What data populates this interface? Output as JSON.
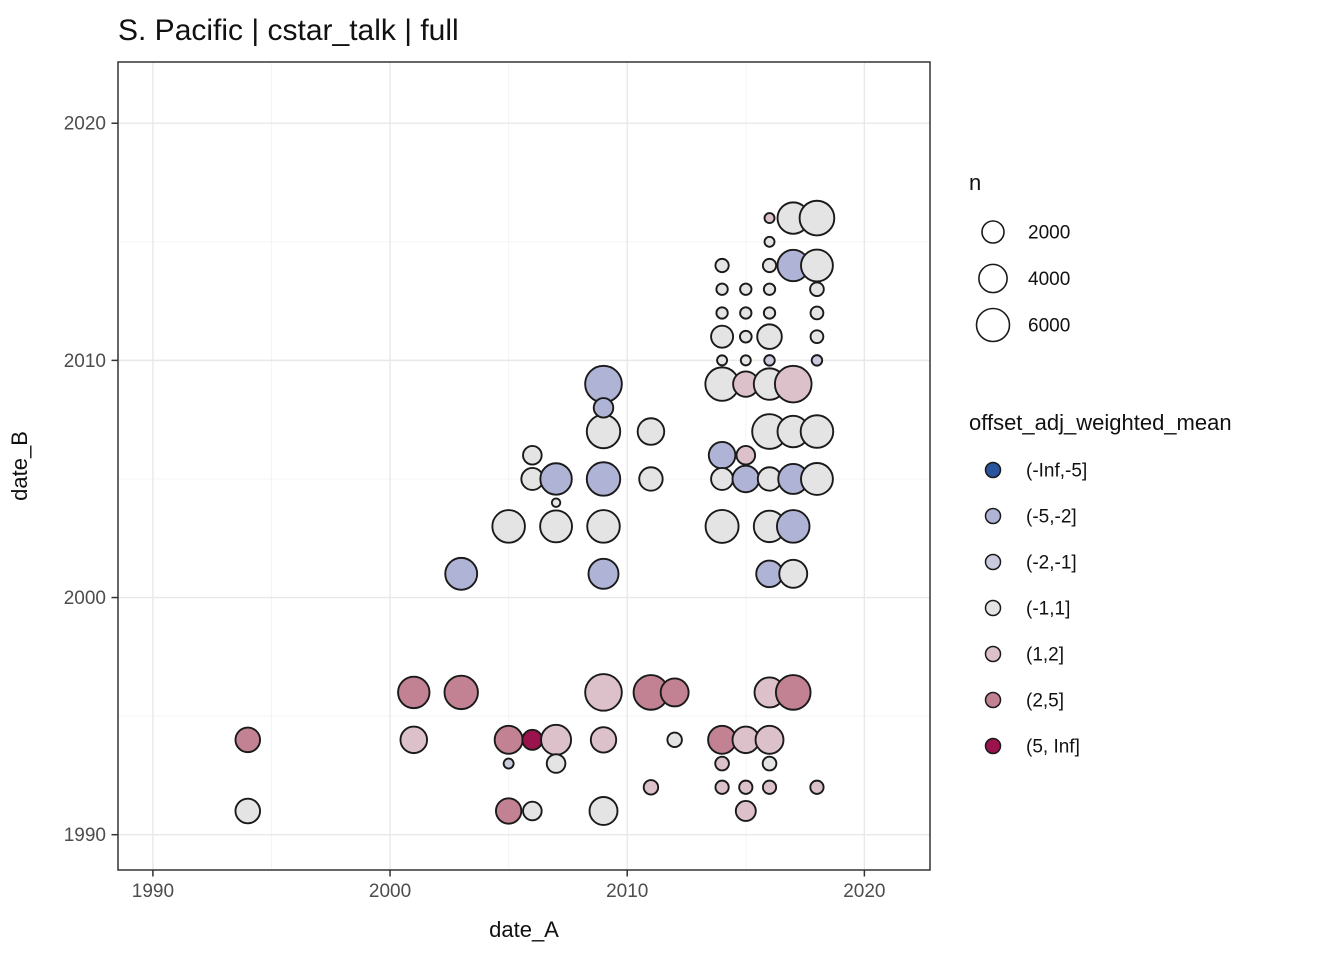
{
  "title": "S. Pacific | cstar_talk | full",
  "chart_data": {
    "type": "scatter",
    "subtype": "bubble",
    "title": "S. Pacific | cstar_talk | full",
    "xlabel": "date_A",
    "ylabel": "date_B",
    "x_ticks": [
      1990,
      2000,
      2010,
      2020
    ],
    "y_ticks": [
      1990,
      2000,
      2010,
      2020
    ],
    "x_minor_gridlines": [
      1995,
      2005,
      2015
    ],
    "y_minor_gridlines": [
      1995,
      2005,
      2015
    ],
    "xlim": [
      1988.5,
      2022.8
    ],
    "ylim": [
      1988.5,
      2022.6
    ],
    "grid": true,
    "legend_position": "right",
    "size_legend": {
      "title": "n",
      "values": [
        2000,
        4000,
        6000
      ]
    },
    "color_legend": {
      "title": "offset_adj_weighted_mean",
      "bins": [
        {
          "label": "(-Inf,-5]",
          "color": "#2A549E"
        },
        {
          "label": "(-5,-2]",
          "color": "#AFB4D6"
        },
        {
          "label": "(-2,-1]",
          "color": "#C9CADE"
        },
        {
          "label": "(-1,1]",
          "color": "#E5E4E5"
        },
        {
          "label": "(1,2]",
          "color": "#DDC1CA"
        },
        {
          "label": "(2,5]",
          "color": "#C28293"
        },
        {
          "label": "(5, Inf]",
          "color": "#9A134D"
        }
      ]
    },
    "points": [
      {
        "x": 2016,
        "y": 2016,
        "n": 80,
        "bin": "(1,2]"
      },
      {
        "x": 2017,
        "y": 2016,
        "n": 5300,
        "bin": "(-1,1]"
      },
      {
        "x": 2018,
        "y": 2016,
        "n": 6800,
        "bin": "(-1,1]"
      },
      {
        "x": 2016,
        "y": 2015,
        "n": 80,
        "bin": "(-1,1]"
      },
      {
        "x": 2014,
        "y": 2014,
        "n": 350,
        "bin": "(-1,1]"
      },
      {
        "x": 2016,
        "y": 2014,
        "n": 350,
        "bin": "(-1,1]"
      },
      {
        "x": 2017,
        "y": 2014,
        "n": 5300,
        "bin": "(-5,-2]"
      },
      {
        "x": 2018,
        "y": 2014,
        "n": 5500,
        "bin": "(-1,1]"
      },
      {
        "x": 2014,
        "y": 2013,
        "n": 170,
        "bin": "(-1,1]"
      },
      {
        "x": 2015,
        "y": 2013,
        "n": 170,
        "bin": "(-1,1]"
      },
      {
        "x": 2016,
        "y": 2013,
        "n": 170,
        "bin": "(-1,1]"
      },
      {
        "x": 2018,
        "y": 2013,
        "n": 400,
        "bin": "(-1,1]"
      },
      {
        "x": 2014,
        "y": 2012,
        "n": 170,
        "bin": "(-1,1]"
      },
      {
        "x": 2015,
        "y": 2012,
        "n": 170,
        "bin": "(-1,1]"
      },
      {
        "x": 2016,
        "y": 2012,
        "n": 170,
        "bin": "(-1,1]"
      },
      {
        "x": 2018,
        "y": 2012,
        "n": 300,
        "bin": "(-1,1]"
      },
      {
        "x": 2014,
        "y": 2011,
        "n": 2000,
        "bin": "(-1,1]"
      },
      {
        "x": 2015,
        "y": 2011,
        "n": 200,
        "bin": "(-1,1]"
      },
      {
        "x": 2016,
        "y": 2011,
        "n": 2750,
        "bin": "(-1,1]"
      },
      {
        "x": 2018,
        "y": 2011,
        "n": 300,
        "bin": "(-1,1]"
      },
      {
        "x": 2014,
        "y": 2010,
        "n": 80,
        "bin": "(-1,1]"
      },
      {
        "x": 2015,
        "y": 2010,
        "n": 80,
        "bin": "(-1,1]"
      },
      {
        "x": 2016,
        "y": 2010,
        "n": 110,
        "bin": "(-2,-1]"
      },
      {
        "x": 2018,
        "y": 2010,
        "n": 110,
        "bin": "(-2,-1]"
      },
      {
        "x": 2014,
        "y": 2009,
        "n": 6200,
        "bin": "(-1,1]"
      },
      {
        "x": 2015,
        "y": 2009,
        "n": 3000,
        "bin": "(1,2]"
      },
      {
        "x": 2016,
        "y": 2009,
        "n": 5300,
        "bin": "(-1,1]"
      },
      {
        "x": 2017,
        "y": 2009,
        "n": 7800,
        "bin": "(1,2]"
      },
      {
        "x": 2016,
        "y": 2007,
        "n": 6800,
        "bin": "(-1,1]"
      },
      {
        "x": 2017,
        "y": 2007,
        "n": 5300,
        "bin": "(-1,1]"
      },
      {
        "x": 2018,
        "y": 2007,
        "n": 5800,
        "bin": "(-1,1]"
      },
      {
        "x": 2014,
        "y": 2006,
        "n": 3400,
        "bin": "(-5,-2]"
      },
      {
        "x": 2015,
        "y": 2006,
        "n": 1200,
        "bin": "(1,2]"
      },
      {
        "x": 2014,
        "y": 2005,
        "n": 2000,
        "bin": "(-1,1]"
      },
      {
        "x": 2015,
        "y": 2005,
        "n": 3400,
        "bin": "(-5,-2]"
      },
      {
        "x": 2016,
        "y": 2005,
        "n": 2400,
        "bin": "(-1,1]"
      },
      {
        "x": 2017,
        "y": 2005,
        "n": 4700,
        "bin": "(-5,-2]"
      },
      {
        "x": 2018,
        "y": 2005,
        "n": 5500,
        "bin": "(-1,1]"
      },
      {
        "x": 2014,
        "y": 2003,
        "n": 6000,
        "bin": "(-1,1]"
      },
      {
        "x": 2016,
        "y": 2003,
        "n": 5300,
        "bin": "(-1,1]"
      },
      {
        "x": 2017,
        "y": 2003,
        "n": 5800,
        "bin": "(-5,-2]"
      },
      {
        "x": 2016,
        "y": 2001,
        "n": 3400,
        "bin": "(-5,-2]"
      },
      {
        "x": 2017,
        "y": 2001,
        "n": 3900,
        "bin": "(-1,1]"
      },
      {
        "x": 2009,
        "y": 2009,
        "n": 7800,
        "bin": "(-5,-2]"
      },
      {
        "x": 2009,
        "y": 2008,
        "n": 1400,
        "bin": "(-5,-2]"
      },
      {
        "x": 2009,
        "y": 2007,
        "n": 6200,
        "bin": "(-1,1]"
      },
      {
        "x": 2011,
        "y": 2007,
        "n": 3400,
        "bin": "(-1,1]"
      },
      {
        "x": 2006,
        "y": 2006,
        "n": 1200,
        "bin": "(-1,1]"
      },
      {
        "x": 2006,
        "y": 2005,
        "n": 2000,
        "bin": "(-1,1]"
      },
      {
        "x": 2007,
        "y": 2005,
        "n": 5300,
        "bin": "(-5,-2]"
      },
      {
        "x": 2009,
        "y": 2005,
        "n": 6200,
        "bin": "(-5,-2]"
      },
      {
        "x": 2011,
        "y": 2005,
        "n": 2400,
        "bin": "(-1,1]"
      },
      {
        "x": 2007,
        "y": 2004,
        "n": 20,
        "bin": "(-1,1]"
      },
      {
        "x": 2005,
        "y": 2003,
        "n": 5800,
        "bin": "(-1,1]"
      },
      {
        "x": 2007,
        "y": 2003,
        "n": 5500,
        "bin": "(-1,1]"
      },
      {
        "x": 2009,
        "y": 2003,
        "n": 5800,
        "bin": "(-1,1]"
      },
      {
        "x": 2003,
        "y": 2001,
        "n": 5500,
        "bin": "(-5,-2]"
      },
      {
        "x": 2009,
        "y": 2001,
        "n": 4700,
        "bin": "(-5,-2]"
      },
      {
        "x": 1994,
        "y": 1994,
        "n": 2750,
        "bin": "(2,5]"
      },
      {
        "x": 1994,
        "y": 1991,
        "n": 2750,
        "bin": "(-1,1]"
      },
      {
        "x": 2001,
        "y": 1996,
        "n": 5300,
        "bin": "(2,5]"
      },
      {
        "x": 2001,
        "y": 1994,
        "n": 3400,
        "bin": "(1,2]"
      },
      {
        "x": 2003,
        "y": 1996,
        "n": 6200,
        "bin": "(2,5]"
      },
      {
        "x": 2005,
        "y": 1994,
        "n": 3900,
        "bin": "(2,5]"
      },
      {
        "x": 2006,
        "y": 1994,
        "n": 1500,
        "bin": "(5, Inf]"
      },
      {
        "x": 2007,
        "y": 1994,
        "n": 4700,
        "bin": "(1,2]"
      },
      {
        "x": 2009,
        "y": 1996,
        "n": 7800,
        "bin": "(1,2]"
      },
      {
        "x": 2009,
        "y": 1994,
        "n": 3000,
        "bin": "(1,2]"
      },
      {
        "x": 2011,
        "y": 1996,
        "n": 6800,
        "bin": "(2,5]"
      },
      {
        "x": 2012,
        "y": 1996,
        "n": 3900,
        "bin": "(2,5]"
      },
      {
        "x": 2005,
        "y": 1993,
        "n": 80,
        "bin": "(-2,-1]"
      },
      {
        "x": 2007,
        "y": 1993,
        "n": 1200,
        "bin": "(-1,1]"
      },
      {
        "x": 2011,
        "y": 1992,
        "n": 500,
        "bin": "(1,2]"
      },
      {
        "x": 2012,
        "y": 1994,
        "n": 500,
        "bin": "(-1,1]"
      },
      {
        "x": 2005,
        "y": 1991,
        "n": 3000,
        "bin": "(2,5]"
      },
      {
        "x": 2006,
        "y": 1991,
        "n": 1200,
        "bin": "(-1,1]"
      },
      {
        "x": 2009,
        "y": 1991,
        "n": 3900,
        "bin": "(-1,1]"
      },
      {
        "x": 2014,
        "y": 1994,
        "n": 3900,
        "bin": "(2,5]"
      },
      {
        "x": 2015,
        "y": 1994,
        "n": 3400,
        "bin": "(1,2]"
      },
      {
        "x": 2016,
        "y": 1994,
        "n": 3900,
        "bin": "(1,2]"
      },
      {
        "x": 2016,
        "y": 1996,
        "n": 4700,
        "bin": "(1,2]"
      },
      {
        "x": 2017,
        "y": 1996,
        "n": 6800,
        "bin": "(2,5]"
      },
      {
        "x": 2014,
        "y": 1993,
        "n": 400,
        "bin": "(1,2]"
      },
      {
        "x": 2016,
        "y": 1993,
        "n": 400,
        "bin": "(-1,1]"
      },
      {
        "x": 2014,
        "y": 1992,
        "n": 350,
        "bin": "(1,2]"
      },
      {
        "x": 2015,
        "y": 1992,
        "n": 350,
        "bin": "(1,2]"
      },
      {
        "x": 2016,
        "y": 1992,
        "n": 350,
        "bin": "(1,2]"
      },
      {
        "x": 2018,
        "y": 1992,
        "n": 350,
        "bin": "(1,2]"
      },
      {
        "x": 2015,
        "y": 1991,
        "n": 1500,
        "bin": "(1,2]"
      }
    ],
    "style": {
      "point_stroke": "#1a1a1a",
      "panel_border": "#333333",
      "major_grid": "#e8e8e8",
      "minor_grid": "#f3f3f3",
      "tick_color": "#333333",
      "tick_text_color": "#4d4d4d"
    }
  }
}
